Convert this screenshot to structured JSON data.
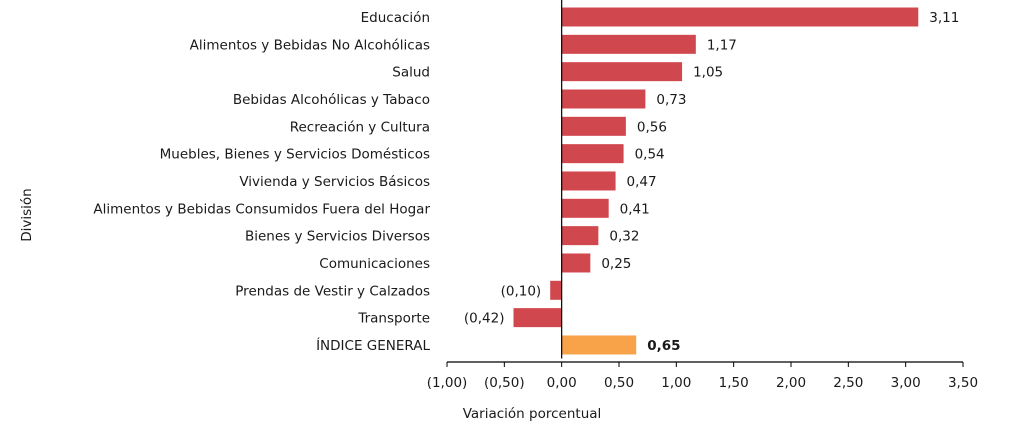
{
  "chart_data": {
    "type": "bar",
    "orientation": "horizontal",
    "title": "",
    "xlabel": "Variación porcentual",
    "ylabel": "División",
    "xlim": [
      -1.0,
      3.5
    ],
    "xticks": [
      -1.0,
      -0.5,
      0.0,
      0.5,
      1.0,
      1.5,
      2.0,
      2.5,
      3.0,
      3.5
    ],
    "xtick_labels": [
      "(1,00)",
      "(0,50)",
      "0,00",
      "0,50",
      "1,00",
      "1,50",
      "2,00",
      "2,50",
      "3,00",
      "3,50"
    ],
    "grid": false,
    "legend": "none",
    "colors": {
      "default": "#d0484e",
      "highlight": "#f8a24a"
    },
    "bars": [
      {
        "category": "Educación",
        "value": 3.11,
        "label": "3,11",
        "highlight": false
      },
      {
        "category": "Alimentos y Bebidas No Alcohólicas",
        "value": 1.17,
        "label": "1,17",
        "highlight": false
      },
      {
        "category": "Salud",
        "value": 1.05,
        "label": "1,05",
        "highlight": false
      },
      {
        "category": "Bebidas Alcohólicas y Tabaco",
        "value": 0.73,
        "label": "0,73",
        "highlight": false
      },
      {
        "category": "Recreación y Cultura",
        "value": 0.56,
        "label": "0,56",
        "highlight": false
      },
      {
        "category": "Muebles, Bienes y Servicios Domésticos",
        "value": 0.54,
        "label": "0,54",
        "highlight": false
      },
      {
        "category": "Vivienda y Servicios Básicos",
        "value": 0.47,
        "label": "0,47",
        "highlight": false
      },
      {
        "category": "Alimentos y Bebidas Consumidos Fuera del Hogar",
        "value": 0.41,
        "label": "0,41",
        "highlight": false
      },
      {
        "category": "Bienes y Servicios Diversos",
        "value": 0.32,
        "label": "0,32",
        "highlight": false
      },
      {
        "category": "Comunicaciones",
        "value": 0.25,
        "label": "0,25",
        "highlight": false
      },
      {
        "category": "Prendas de Vestir y Calzados",
        "value": -0.1,
        "label": "(0,10)",
        "highlight": false
      },
      {
        "category": "Transporte",
        "value": -0.42,
        "label": "(0,42)",
        "highlight": false
      },
      {
        "category": "ÍNDICE GENERAL",
        "value": 0.65,
        "label": "0,65",
        "highlight": true
      }
    ]
  }
}
